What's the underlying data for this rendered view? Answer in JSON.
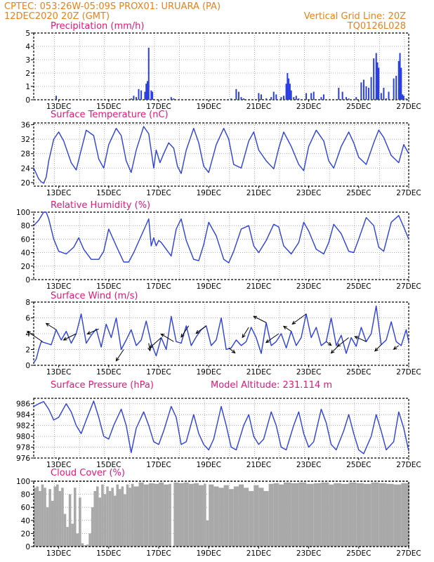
{
  "header": {
    "line1": "CPTEC:   053:26W-05:09S   PROX01: URUARA (PA)",
    "date": "12DEC2020 20Z (GMT)",
    "grid_note": "Vertical Grid Line: 20Z",
    "code": "TQ0126L028"
  },
  "colors": {
    "series": "#2b3fe0",
    "cloud": "#a9a9a9",
    "header": "#e8811a",
    "title": "#e0187a",
    "arrow": "#000000"
  },
  "x_axis": {
    "label_days": [
      13,
      15,
      17,
      19,
      21,
      23,
      25,
      27
    ],
    "labels": [
      "13DEC",
      "15DEC",
      "17DEC",
      "19DEC",
      "21DEC",
      "23DEC",
      "25DEC",
      "27DEC"
    ],
    "day_range": [
      12.0,
      27.0
    ],
    "grid_days": [
      12.83,
      13.83,
      14.83,
      15.83,
      16.83,
      17.83,
      18.83,
      19.83,
      20.83,
      21.83,
      22.83,
      23.83,
      24.83,
      25.83,
      26.83
    ]
  },
  "chart_data": [
    {
      "id": "precip",
      "type": "bar",
      "title": "Precipitation (mm/h)",
      "ylim": [
        0,
        5
      ],
      "yticks": [
        0,
        1,
        2,
        3,
        4,
        5
      ],
      "x": [
        12.9,
        15.9,
        16.0,
        16.1,
        16.2,
        16.3,
        16.45,
        16.5,
        16.55,
        16.6,
        16.7,
        16.75,
        17.5,
        17.6,
        19.9,
        20.1,
        20.2,
        20.3,
        20.4,
        21.0,
        21.1,
        21.3,
        21.5,
        21.6,
        21.7,
        21.9,
        22.0,
        22.1,
        22.15,
        22.2,
        22.25,
        22.3,
        22.4,
        22.5,
        22.6,
        22.9,
        23.1,
        23.2,
        23.5,
        23.6,
        24.2,
        24.35,
        24.5,
        24.6,
        24.9,
        25.1,
        25.2,
        25.3,
        25.4,
        25.5,
        25.6,
        25.7,
        25.75,
        25.8,
        25.9,
        26.0,
        26.1,
        26.2,
        26.4,
        26.5,
        26.6,
        26.65,
        26.7,
        26.75,
        26.8,
        26.9
      ],
      "values": [
        0.3,
        0.1,
        0.3,
        0.2,
        0.8,
        0.7,
        0.6,
        1.2,
        1.4,
        3.9,
        0.7,
        0.6,
        0.2,
        0.1,
        0.1,
        0.8,
        0.6,
        0.2,
        0.1,
        0.5,
        0.4,
        0.1,
        0.2,
        0.6,
        0.4,
        0.2,
        0.3,
        1.2,
        2.0,
        1.6,
        1.2,
        0.7,
        0.2,
        0.3,
        0.1,
        0.5,
        0.5,
        0.6,
        0.2,
        0.4,
        0.9,
        0.6,
        0.2,
        0.1,
        0.2,
        1.3,
        1.5,
        1.0,
        0.9,
        1.7,
        3.1,
        3.5,
        2.8,
        2.4,
        0.5,
        0.9,
        0.1,
        0.6,
        1.6,
        1.8,
        2.9,
        3.5,
        2.4,
        0.4,
        0.3,
        0.1
      ]
    },
    {
      "id": "temp",
      "type": "line",
      "title": "Surface Temperature (nC)",
      "ylim": [
        19,
        36.5
      ],
      "yticks": [
        20,
        24,
        28,
        32,
        36
      ],
      "x": [
        12.0,
        12.1,
        12.2,
        12.3,
        12.4,
        12.5,
        12.6,
        12.8,
        13.0,
        13.2,
        13.5,
        13.7,
        13.9,
        14.1,
        14.4,
        14.6,
        14.8,
        15.0,
        15.3,
        15.5,
        15.7,
        15.9,
        16.1,
        16.4,
        16.6,
        16.8,
        16.9,
        17.05,
        17.2,
        17.4,
        17.6,
        17.75,
        17.9,
        18.1,
        18.4,
        18.6,
        18.8,
        19.0,
        19.3,
        19.6,
        19.8,
        20.0,
        20.3,
        20.6,
        20.8,
        21.0,
        21.3,
        21.6,
        21.8,
        22.0,
        22.3,
        22.6,
        22.8,
        23.0,
        23.3,
        23.6,
        23.8,
        24.0,
        24.3,
        24.6,
        24.8,
        25.0,
        25.3,
        25.6,
        25.8,
        26.0,
        26.3,
        26.6,
        26.8,
        27.0
      ],
      "values": [
        24.0,
        22.5,
        21.0,
        20.2,
        19.8,
        21.5,
        26.0,
        32.0,
        34.0,
        31.5,
        25.5,
        23.5,
        29.0,
        34.5,
        33.0,
        26.5,
        24.0,
        30.5,
        35.0,
        33.0,
        26.0,
        22.8,
        29.0,
        35.5,
        33.5,
        24.0,
        29.0,
        25.5,
        28.0,
        31.0,
        29.5,
        24.5,
        22.5,
        29.0,
        35.0,
        31.0,
        24.5,
        22.8,
        30.5,
        35.0,
        32.0,
        25.0,
        24.0,
        31.5,
        34.0,
        29.0,
        26.0,
        23.8,
        29.5,
        34.0,
        30.0,
        25.0,
        23.3,
        30.0,
        34.5,
        31.5,
        26.0,
        24.0,
        30.0,
        34.0,
        31.0,
        27.0,
        25.0,
        31.0,
        34.5,
        32.5,
        27.5,
        25.5,
        30.5,
        28.0
      ]
    },
    {
      "id": "rh",
      "type": "line",
      "title": "Relative Humidity (%)",
      "ylim": [
        0,
        100
      ],
      "yticks": [
        0,
        20,
        40,
        60,
        80,
        100
      ],
      "x": [
        12.0,
        12.2,
        12.4,
        12.5,
        12.6,
        12.8,
        13.0,
        13.3,
        13.6,
        13.8,
        14.0,
        14.3,
        14.6,
        14.8,
        15.0,
        15.3,
        15.6,
        15.8,
        16.0,
        16.3,
        16.6,
        16.7,
        16.8,
        16.9,
        17.0,
        17.1,
        17.3,
        17.5,
        17.7,
        17.9,
        18.1,
        18.4,
        18.6,
        18.8,
        19.0,
        19.3,
        19.6,
        19.8,
        20.0,
        20.3,
        20.6,
        20.8,
        21.0,
        21.3,
        21.6,
        21.8,
        22.0,
        22.3,
        22.6,
        22.8,
        23.0,
        23.3,
        23.6,
        23.8,
        24.0,
        24.3,
        24.6,
        24.8,
        25.0,
        25.3,
        25.6,
        25.8,
        26.0,
        26.3,
        26.6,
        26.8,
        27.0
      ],
      "values": [
        80.0,
        88.0,
        100.0,
        100.0,
        90.0,
        60.0,
        42.0,
        38.0,
        48.0,
        62.0,
        45.0,
        30.0,
        30.0,
        42.0,
        75.0,
        50.0,
        26.0,
        26.0,
        40.0,
        65.0,
        90.0,
        50.0,
        62.0,
        50.0,
        58.0,
        55.0,
        45.0,
        35.0,
        75.0,
        90.0,
        58.0,
        30.0,
        28.0,
        52.0,
        85.0,
        65.0,
        30.0,
        25.0,
        42.0,
        75.0,
        80.0,
        50.0,
        40.0,
        58.0,
        82.0,
        78.0,
        50.0,
        38.0,
        55.0,
        85.0,
        72.0,
        45.0,
        38.0,
        55.0,
        82.0,
        68.0,
        42.0,
        40.0,
        60.0,
        92.0,
        80.0,
        48.0,
        42.0,
        85.0,
        95.0,
        78.0,
        60.0
      ]
    },
    {
      "id": "wind",
      "type": "line",
      "title": "Surface Wind (m/s)",
      "ylim": [
        0,
        8
      ],
      "yticks": [
        0,
        2,
        4,
        6,
        8
      ],
      "x": [
        12.0,
        12.1,
        12.2,
        12.3,
        12.5,
        12.7,
        12.9,
        13.1,
        13.3,
        13.5,
        13.7,
        13.9,
        14.1,
        14.3,
        14.5,
        14.7,
        14.9,
        15.1,
        15.3,
        15.5,
        15.7,
        15.9,
        16.1,
        16.3,
        16.5,
        16.7,
        16.9,
        17.1,
        17.3,
        17.5,
        17.7,
        17.9,
        18.1,
        18.3,
        18.5,
        18.7,
        18.9,
        19.1,
        19.3,
        19.5,
        19.7,
        19.9,
        20.1,
        20.3,
        20.5,
        20.7,
        20.9,
        21.1,
        21.3,
        21.5,
        21.7,
        21.9,
        22.1,
        22.3,
        22.5,
        22.7,
        22.9,
        23.1,
        23.3,
        23.5,
        23.7,
        23.9,
        24.1,
        24.3,
        24.5,
        24.7,
        24.9,
        25.1,
        25.3,
        25.5,
        25.7,
        25.9,
        26.1,
        26.3,
        26.5,
        26.7,
        26.9,
        27.0
      ],
      "values": [
        0.3,
        0.8,
        2.0,
        3.0,
        2.8,
        2.6,
        4.5,
        3.2,
        4.3,
        2.8,
        4.0,
        6.5,
        2.8,
        3.8,
        4.6,
        2.3,
        5.2,
        3.5,
        6.0,
        2.0,
        3.2,
        4.5,
        2.5,
        3.2,
        5.6,
        2.8,
        1.2,
        3.5,
        2.0,
        6.2,
        3.0,
        2.8,
        5.0,
        2.5,
        3.6,
        4.5,
        5.0,
        2.5,
        3.2,
        6.0,
        2.0,
        2.2,
        3.2,
        2.5,
        3.0,
        4.8,
        3.5,
        1.5,
        5.4,
        2.5,
        3.0,
        4.0,
        2.2,
        4.3,
        2.5,
        3.5,
        6.5,
        3.5,
        4.8,
        2.5,
        3.0,
        6.0,
        2.5,
        3.8,
        1.5,
        3.5,
        2.4,
        4.8,
        3.0,
        4.0,
        7.5,
        2.6,
        3.2,
        5.5,
        3.0,
        2.5,
        4.5,
        3.0
      ]
    },
    {
      "id": "wind_arrows",
      "type": "scatter",
      "x": [
        12.35,
        12.9,
        13.7,
        14.6,
        15.6,
        16.6,
        17.1,
        17.6,
        18.2,
        18.9,
        19.8,
        20.6,
        21.3,
        21.8,
        22.3,
        22.9,
        23.7,
        24.2,
        24.6,
        25.3,
        25.9,
        26.6
      ],
      "u": [
        -1.2,
        -0.8,
        -1.0,
        -0.9,
        -0.6,
        0.1,
        -0.9,
        -1.0,
        -0.6,
        -0.8,
        0.5,
        -0.5,
        -1.0,
        -1.0,
        -0.6,
        -1.1,
        0.4,
        -0.6,
        -0.9,
        -0.9,
        -0.5,
        -0.4
      ],
      "v": [
        0.8,
        0.5,
        -0.5,
        -0.4,
        -0.9,
        -0.6,
        -0.8,
        0.6,
        -0.9,
        -0.6,
        -0.4,
        -0.8,
        0.5,
        -0.7,
        0.4,
        -0.8,
        -0.3,
        -0.6,
        -0.7,
        0.4,
        -0.5,
        -0.3
      ]
    },
    {
      "id": "press",
      "type": "line",
      "title": "Surface Pressure (hPa)",
      "ylim": [
        976,
        987
      ],
      "yticks": [
        976,
        978,
        980,
        982,
        984,
        986
      ],
      "x": [
        12.0,
        12.2,
        12.4,
        12.6,
        12.8,
        13.0,
        13.3,
        13.5,
        13.7,
        13.9,
        14.1,
        14.4,
        14.6,
        14.8,
        15.0,
        15.2,
        15.5,
        15.7,
        15.9,
        16.1,
        16.4,
        16.6,
        16.8,
        17.0,
        17.2,
        17.5,
        17.7,
        17.9,
        18.1,
        18.4,
        18.6,
        18.8,
        19.0,
        19.2,
        19.5,
        19.7,
        19.9,
        20.1,
        20.4,
        20.6,
        20.8,
        21.0,
        21.2,
        21.5,
        21.7,
        21.9,
        22.1,
        22.4,
        22.6,
        22.8,
        23.0,
        23.2,
        23.5,
        23.7,
        23.9,
        24.1,
        24.4,
        24.6,
        24.8,
        25.0,
        25.2,
        25.5,
        25.7,
        25.9,
        26.1,
        26.4,
        26.6,
        26.8,
        27.0
      ],
      "values": [
        985.5,
        986.0,
        986.4,
        985.0,
        983.0,
        983.5,
        986.0,
        984.5,
        982.0,
        980.5,
        983.0,
        986.5,
        983.5,
        980.0,
        979.5,
        982.0,
        985.0,
        982.0,
        977.0,
        981.5,
        984.5,
        982.0,
        979.0,
        978.5,
        981.0,
        985.5,
        983.5,
        978.5,
        979.0,
        984.0,
        980.5,
        978.5,
        977.5,
        979.5,
        985.5,
        982.0,
        978.0,
        977.5,
        982.0,
        984.0,
        980.0,
        978.5,
        979.5,
        984.5,
        982.0,
        978.0,
        977.5,
        982.0,
        984.5,
        980.5,
        978.0,
        979.0,
        985.0,
        982.5,
        978.5,
        977.5,
        981.0,
        984.0,
        980.5,
        977.5,
        976.8,
        980.0,
        984.0,
        981.0,
        977.5,
        979.0,
        984.5,
        981.5,
        977.3
      ]
    },
    {
      "id": "cloud",
      "type": "area",
      "title": "Cloud Cover (%)",
      "ylim": [
        0,
        100
      ],
      "yticks": [
        0,
        20,
        40,
        60,
        80,
        100
      ],
      "x": [
        12.0,
        12.1,
        12.2,
        12.3,
        12.4,
        12.5,
        12.6,
        12.7,
        12.8,
        12.9,
        13.0,
        13.1,
        13.2,
        13.3,
        13.4,
        13.5,
        13.6,
        13.7,
        13.8,
        13.9,
        14.0,
        14.1,
        14.2,
        14.3,
        14.4,
        14.5,
        14.6,
        14.7,
        14.8,
        14.9,
        15.0,
        15.1,
        15.2,
        15.3,
        15.4,
        15.5,
        15.6,
        15.7,
        15.8,
        15.9,
        16.0,
        16.2,
        16.4,
        16.6,
        16.8,
        17.0,
        17.2,
        17.4,
        17.5,
        17.6,
        17.8,
        18.0,
        18.2,
        18.4,
        18.6,
        18.8,
        18.9,
        19.0,
        19.2,
        19.4,
        19.6,
        19.8,
        20.0,
        20.2,
        20.4,
        20.6,
        20.8,
        21.0,
        21.2,
        21.4,
        21.6,
        21.8,
        22.0,
        22.3,
        22.6,
        22.9,
        23.2,
        23.5,
        23.8,
        24.0,
        24.3,
        24.6,
        24.9,
        25.2,
        25.5,
        25.8,
        26.1,
        26.4,
        26.7,
        27.0
      ],
      "values": [
        90.0,
        92.0,
        85.0,
        95.0,
        90.0,
        60.0,
        88.0,
        70.0,
        92.0,
        95.0,
        85.0,
        90.0,
        50.0,
        30.0,
        80.0,
        35.0,
        90.0,
        20.0,
        75.0,
        5.0,
        2.0,
        3.0,
        20.0,
        60.0,
        85.0,
        92.0,
        75.0,
        95.0,
        80.0,
        92.0,
        85.0,
        90.0,
        78.0,
        95.0,
        88.0,
        92.0,
        80.0,
        95.0,
        90.0,
        96.0,
        92.0,
        98.0,
        95.0,
        97.0,
        96.0,
        98.0,
        95.0,
        96.0,
        0.0,
        98.0,
        97.0,
        98.0,
        96.0,
        97.0,
        94.0,
        96.0,
        40.0,
        95.0,
        92.0,
        90.0,
        94.0,
        88.0,
        92.0,
        95.0,
        90.0,
        85.0,
        94.0,
        90.0,
        85.0,
        96.0,
        97.0,
        95.0,
        98.0,
        97.0,
        98.0,
        96.0,
        97.0,
        98.0,
        95.0,
        97.0,
        96.0,
        98.0,
        97.0,
        96.0,
        98.0,
        97.0,
        96.0,
        95.0,
        97.0,
        98.0
      ]
    }
  ],
  "panel_extra": {
    "press_note": "Model Altitude: 231.114 m"
  }
}
